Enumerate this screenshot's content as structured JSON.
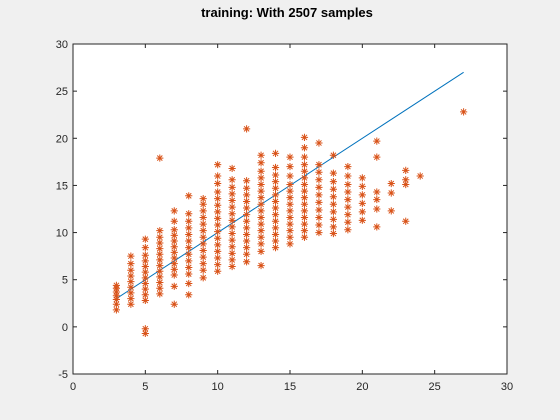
{
  "chart_data": {
    "type": "scatter",
    "title": "training: With 2507 samples",
    "xlabel": "",
    "ylabel": "",
    "xlim": [
      0,
      30
    ],
    "ylim": [
      -5,
      30
    ],
    "xticks": [
      "0",
      "5",
      "10",
      "15",
      "20",
      "25",
      "30"
    ],
    "yticks": [
      "-5",
      "0",
      "5",
      "10",
      "15",
      "20",
      "25",
      "30"
    ],
    "grid": false,
    "colors": {
      "points": "#d95319",
      "line": "#0072bd",
      "axes": "#262626"
    },
    "series": [
      {
        "type": "scatter",
        "marker": "asterisk",
        "points": [
          [
            3,
            1.8
          ],
          [
            3,
            2.4
          ],
          [
            3,
            2.9
          ],
          [
            3,
            3.3
          ],
          [
            3,
            3.7
          ],
          [
            3,
            4.1
          ],
          [
            3,
            4.4
          ],
          [
            4,
            2.4
          ],
          [
            4,
            3.0
          ],
          [
            4,
            3.6
          ],
          [
            4,
            4.2
          ],
          [
            4,
            4.8
          ],
          [
            4,
            5.4
          ],
          [
            4,
            6.0
          ],
          [
            4,
            6.7
          ],
          [
            4,
            7.5
          ],
          [
            5,
            -0.7
          ],
          [
            5,
            -0.2
          ],
          [
            5,
            2.8
          ],
          [
            5,
            3.4
          ],
          [
            5,
            4.0
          ],
          [
            5,
            4.6
          ],
          [
            5,
            5.2
          ],
          [
            5,
            5.8
          ],
          [
            5,
            6.4
          ],
          [
            5,
            7.0
          ],
          [
            5,
            7.6
          ],
          [
            5,
            8.4
          ],
          [
            5,
            9.3
          ],
          [
            6,
            3.5
          ],
          [
            6,
            4.1
          ],
          [
            6,
            4.7
          ],
          [
            6,
            5.3
          ],
          [
            6,
            5.9
          ],
          [
            6,
            6.5
          ],
          [
            6,
            7.1
          ],
          [
            6,
            7.7
          ],
          [
            6,
            8.3
          ],
          [
            6,
            8.9
          ],
          [
            6,
            9.5
          ],
          [
            6,
            10.2
          ],
          [
            6,
            17.9
          ],
          [
            7,
            2.4
          ],
          [
            7,
            4.3
          ],
          [
            7,
            5.5
          ],
          [
            7,
            6.1
          ],
          [
            7,
            6.7
          ],
          [
            7,
            7.3
          ],
          [
            7,
            7.9
          ],
          [
            7,
            8.5
          ],
          [
            7,
            9.1
          ],
          [
            7,
            9.7
          ],
          [
            7,
            10.3
          ],
          [
            7,
            11.2
          ],
          [
            7,
            12.3
          ],
          [
            8,
            3.4
          ],
          [
            8,
            4.6
          ],
          [
            8,
            5.6
          ],
          [
            8,
            6.3
          ],
          [
            8,
            7.0
          ],
          [
            8,
            7.7
          ],
          [
            8,
            8.4
          ],
          [
            8,
            9.1
          ],
          [
            8,
            9.8
          ],
          [
            8,
            10.5
          ],
          [
            8,
            11.2
          ],
          [
            8,
            12.0
          ],
          [
            8,
            13.9
          ],
          [
            9,
            5.2
          ],
          [
            9,
            6.0
          ],
          [
            9,
            6.7
          ],
          [
            9,
            7.4
          ],
          [
            9,
            8.1
          ],
          [
            9,
            8.8
          ],
          [
            9,
            9.5
          ],
          [
            9,
            10.2
          ],
          [
            9,
            10.9
          ],
          [
            9,
            11.6
          ],
          [
            9,
            12.3
          ],
          [
            9,
            13.0
          ],
          [
            9,
            13.6
          ],
          [
            10,
            5.9
          ],
          [
            10,
            6.6
          ],
          [
            10,
            7.3
          ],
          [
            10,
            8.0
          ],
          [
            10,
            8.7
          ],
          [
            10,
            9.4
          ],
          [
            10,
            10.1
          ],
          [
            10,
            10.8
          ],
          [
            10,
            11.5
          ],
          [
            10,
            12.2
          ],
          [
            10,
            12.9
          ],
          [
            10,
            13.6
          ],
          [
            10,
            14.3
          ],
          [
            10,
            15.2
          ],
          [
            10,
            16.0
          ],
          [
            10,
            17.2
          ],
          [
            11,
            6.4
          ],
          [
            11,
            7.1
          ],
          [
            11,
            7.8
          ],
          [
            11,
            8.5
          ],
          [
            11,
            9.2
          ],
          [
            11,
            9.9
          ],
          [
            11,
            10.6
          ],
          [
            11,
            11.3
          ],
          [
            11,
            12.0
          ],
          [
            11,
            12.7
          ],
          [
            11,
            13.4
          ],
          [
            11,
            14.1
          ],
          [
            11,
            14.8
          ],
          [
            11,
            15.6
          ],
          [
            11,
            16.8
          ],
          [
            12,
            6.9
          ],
          [
            12,
            7.7
          ],
          [
            12,
            8.4
          ],
          [
            12,
            9.1
          ],
          [
            12,
            9.8
          ],
          [
            12,
            10.5
          ],
          [
            12,
            11.2
          ],
          [
            12,
            11.9
          ],
          [
            12,
            12.6
          ],
          [
            12,
            13.3
          ],
          [
            12,
            14.0
          ],
          [
            12,
            14.7
          ],
          [
            12,
            15.5
          ],
          [
            12,
            21.0
          ],
          [
            13,
            6.5
          ],
          [
            13,
            8.0
          ],
          [
            13,
            8.8
          ],
          [
            13,
            9.5
          ],
          [
            13,
            10.2
          ],
          [
            13,
            10.9
          ],
          [
            13,
            11.6
          ],
          [
            13,
            12.3
          ],
          [
            13,
            13.0
          ],
          [
            13,
            13.7
          ],
          [
            13,
            14.4
          ],
          [
            13,
            15.1
          ],
          [
            13,
            15.8
          ],
          [
            13,
            16.5
          ],
          [
            13,
            17.4
          ],
          [
            13,
            18.2
          ],
          [
            14,
            8.4
          ],
          [
            14,
            9.1
          ],
          [
            14,
            9.8
          ],
          [
            14,
            10.5
          ],
          [
            14,
            11.2
          ],
          [
            14,
            11.9
          ],
          [
            14,
            12.6
          ],
          [
            14,
            13.3
          ],
          [
            14,
            14.0
          ],
          [
            14,
            14.7
          ],
          [
            14,
            15.4
          ],
          [
            14,
            16.1
          ],
          [
            14,
            16.9
          ],
          [
            14,
            18.4
          ],
          [
            15,
            8.8
          ],
          [
            15,
            9.5
          ],
          [
            15,
            10.2
          ],
          [
            15,
            10.9
          ],
          [
            15,
            11.6
          ],
          [
            15,
            12.3
          ],
          [
            15,
            13.0
          ],
          [
            15,
            13.7
          ],
          [
            15,
            14.4
          ],
          [
            15,
            15.1
          ],
          [
            15,
            16.0
          ],
          [
            15,
            17.0
          ],
          [
            15,
            18.0
          ],
          [
            16,
            9.5
          ],
          [
            16,
            10.2
          ],
          [
            16,
            10.9
          ],
          [
            16,
            11.6
          ],
          [
            16,
            12.3
          ],
          [
            16,
            13.0
          ],
          [
            16,
            13.7
          ],
          [
            16,
            14.4
          ],
          [
            16,
            15.1
          ],
          [
            16,
            15.8
          ],
          [
            16,
            16.5
          ],
          [
            16,
            17.2
          ],
          [
            16,
            18.0
          ],
          [
            16,
            19.0
          ],
          [
            16,
            20.1
          ],
          [
            17,
            10.0
          ],
          [
            17,
            10.8
          ],
          [
            17,
            11.6
          ],
          [
            17,
            12.4
          ],
          [
            17,
            13.2
          ],
          [
            17,
            14.0
          ],
          [
            17,
            14.8
          ],
          [
            17,
            15.6
          ],
          [
            17,
            16.4
          ],
          [
            17,
            17.2
          ],
          [
            17,
            19.5
          ],
          [
            18,
            9.9
          ],
          [
            18,
            10.6
          ],
          [
            18,
            11.4
          ],
          [
            18,
            12.2
          ],
          [
            18,
            13.0
          ],
          [
            18,
            13.8
          ],
          [
            18,
            14.6
          ],
          [
            18,
            15.4
          ],
          [
            18,
            16.3
          ],
          [
            18,
            18.2
          ],
          [
            19,
            10.3
          ],
          [
            19,
            11.1
          ],
          [
            19,
            11.9
          ],
          [
            19,
            12.7
          ],
          [
            19,
            13.5
          ],
          [
            19,
            14.3
          ],
          [
            19,
            15.1
          ],
          [
            19,
            16.0
          ],
          [
            19,
            17.0
          ],
          [
            20,
            11.3
          ],
          [
            20,
            12.2
          ],
          [
            20,
            13.1
          ],
          [
            20,
            14.0
          ],
          [
            20,
            14.9
          ],
          [
            20,
            15.8
          ],
          [
            21,
            10.6
          ],
          [
            21,
            12.5
          ],
          [
            21,
            13.5
          ],
          [
            21,
            14.3
          ],
          [
            21,
            18.0
          ],
          [
            21,
            19.7
          ],
          [
            22,
            12.3
          ],
          [
            22,
            14.2
          ],
          [
            22,
            15.2
          ],
          [
            23,
            11.2
          ],
          [
            23,
            15.1
          ],
          [
            23,
            15.6
          ],
          [
            23,
            16.6
          ],
          [
            24,
            16.0
          ],
          [
            27,
            22.8
          ]
        ]
      },
      {
        "type": "line",
        "points": [
          [
            3,
            3
          ],
          [
            27,
            27
          ]
        ]
      }
    ]
  }
}
